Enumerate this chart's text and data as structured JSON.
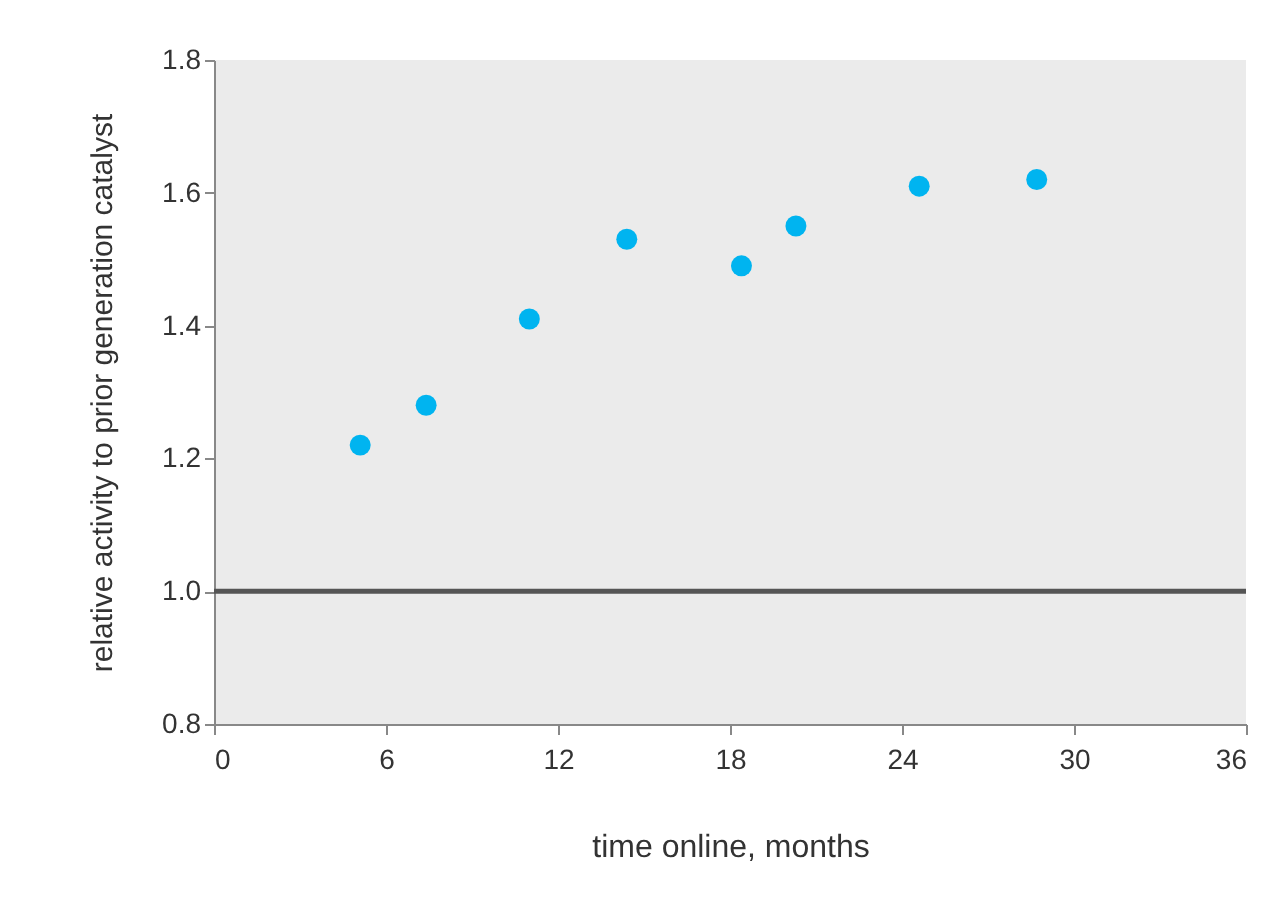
{
  "chart_data": {
    "type": "scatter",
    "xlabel": "time online, months",
    "ylabel": "relative activity to prior generation catalyst",
    "x": [
      5.1,
      7.4,
      11,
      14.4,
      18.4,
      20.3,
      24.6,
      28.7
    ],
    "series": [
      {
        "color": "#00b4f0",
        "values": [
          1.22,
          1.28,
          1.41,
          1.53,
          1.49,
          1.55,
          1.61,
          1.62
        ]
      }
    ],
    "xlim": [
      0,
      36
    ],
    "xticks": [
      0,
      6,
      12,
      18,
      24,
      30,
      36
    ],
    "ylim": [
      0.8,
      1.8
    ],
    "yticks": [
      0.8,
      {
        "value": 1,
        "label": "1.0"
      },
      1.2,
      1.4,
      1.6,
      1.8
    ],
    "ref_lines": [
      {
        "axis": "y",
        "value": 1.0,
        "color": "#555555"
      }
    ],
    "grid": false,
    "marker": "circle"
  }
}
